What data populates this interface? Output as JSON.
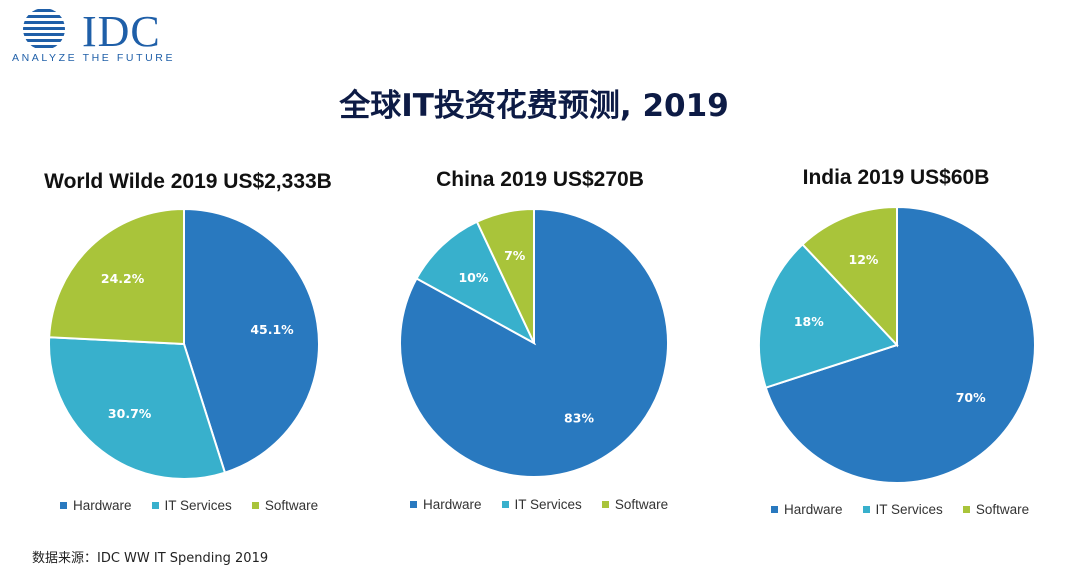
{
  "logo": {
    "text": "IDC",
    "tagline": "ANALYZE THE FUTURE"
  },
  "title": "全球IT投资花费预测, 2019",
  "source": "数据来源：IDC WW IT Spending 2019",
  "colors": {
    "hardware": "#2979bf",
    "it_services": "#38b0cc",
    "software": "#a9c43a"
  },
  "chart_data": [
    {
      "type": "pie",
      "title": "World Wilde  2019 US$2,333B",
      "categories": [
        "Hardware",
        "IT Services",
        "Software"
      ],
      "values": [
        45.1,
        30.7,
        24.2
      ],
      "labels": [
        "45.1%",
        "30.7%",
        "24.2%"
      ],
      "legend": "bottom"
    },
    {
      "type": "pie",
      "title": "China 2019 US$270B",
      "categories": [
        "Hardware",
        "IT Services",
        "Software"
      ],
      "values": [
        83,
        10,
        7
      ],
      "labels": [
        "83%",
        "10%",
        "7%"
      ],
      "legend": "bottom"
    },
    {
      "type": "pie",
      "title": "India  2019 US$60B",
      "categories": [
        "Hardware",
        "IT Services",
        "Software"
      ],
      "values": [
        70,
        18,
        12
      ],
      "labels": [
        "70%",
        "18%",
        "12%"
      ],
      "legend": "bottom"
    }
  ]
}
